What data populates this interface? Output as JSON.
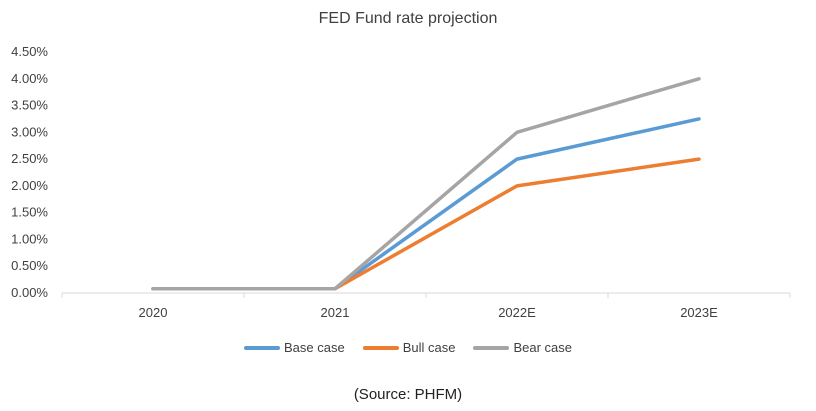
{
  "chart_data": {
    "type": "line",
    "title": "FED Fund rate projection",
    "categories": [
      "2020",
      "2021",
      "2022E",
      "2023E"
    ],
    "ylim": [
      0,
      0.045
    ],
    "yticks": [
      "0.00%",
      "0.50%",
      "1.00%",
      "1.50%",
      "2.00%",
      "2.50%",
      "3.00%",
      "3.50%",
      "4.00%",
      "4.50%"
    ],
    "series": [
      {
        "name": "Base case",
        "color": "#5B9BD5",
        "values": [
          0.0008,
          0.0008,
          0.025,
          0.0325
        ]
      },
      {
        "name": "Bull case",
        "color": "#ED7D31",
        "values": [
          0.0008,
          0.0008,
          0.02,
          0.025
        ]
      },
      {
        "name": "Bear case",
        "color": "#A5A5A5",
        "values": [
          0.0008,
          0.0008,
          0.03,
          0.04
        ]
      }
    ],
    "grid": false,
    "legend_position": "bottom"
  },
  "source": "(Source: PHFM)"
}
